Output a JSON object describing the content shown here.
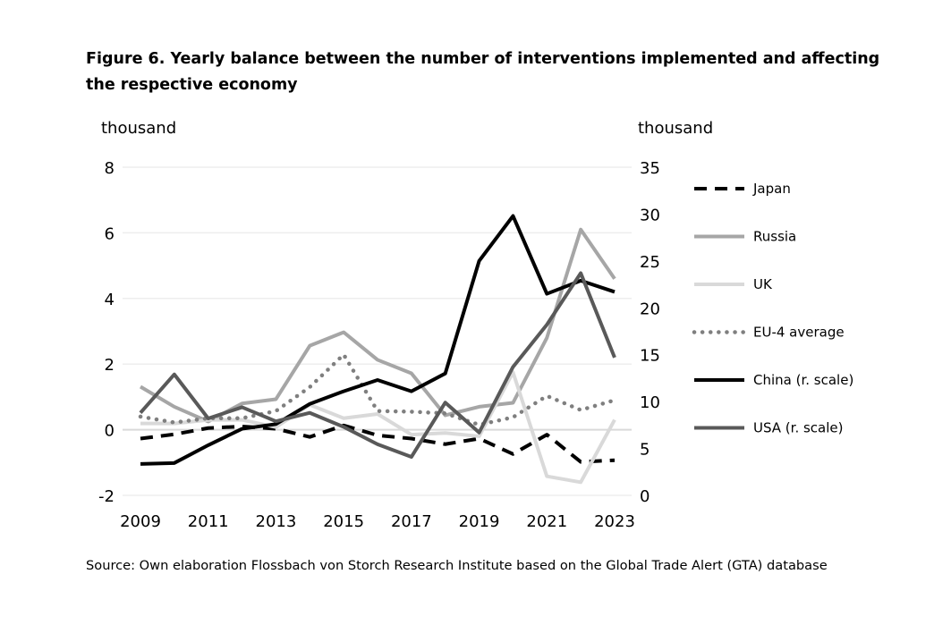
{
  "chart_data": {
    "type": "line",
    "title": "Figure 6. Yearly balance between the number of interventions implemented and affecting the respective economy",
    "source": "Source: Own elaboration Flossbach von Storch Research Institute based on the Global Trade Alert (GTA) database",
    "ylabel_left": "thousand",
    "ylabel_right": "thousand",
    "ylim_left": [
      -2,
      8
    ],
    "ylim_right": [
      0,
      35
    ],
    "yticks_left": [
      "8",
      "6",
      "4",
      "2",
      "0",
      "-2"
    ],
    "yticks_right": [
      "35",
      "30",
      "25",
      "20",
      "15",
      "10",
      "5",
      "0"
    ],
    "x": [
      2009,
      2010,
      2011,
      2012,
      2013,
      2014,
      2015,
      2016,
      2017,
      2018,
      2019,
      2020,
      2021,
      2022,
      2023
    ],
    "xticks": [
      "2009",
      "2011",
      "2013",
      "2015",
      "2017",
      "2019",
      "2021",
      "2023"
    ],
    "grid": true,
    "legend_position": "right",
    "series": [
      {
        "name": "Japan",
        "axis": "left",
        "color": "#000000",
        "style": "dashed",
        "values": [
          -0.27,
          -0.14,
          0.05,
          0.1,
          0.03,
          -0.22,
          0.13,
          -0.17,
          -0.27,
          -0.44,
          -0.27,
          -0.74,
          -0.15,
          -0.98,
          -0.93
        ]
      },
      {
        "name": "Russia",
        "axis": "left",
        "color": "#a6a6a6",
        "style": "solid",
        "values": [
          1.31,
          0.7,
          0.25,
          0.8,
          0.93,
          2.56,
          2.97,
          2.13,
          1.72,
          0.44,
          0.7,
          0.82,
          2.8,
          6.1,
          4.6
        ]
      },
      {
        "name": "UK",
        "axis": "left",
        "color": "#d9d9d9",
        "style": "solid",
        "values": [
          0.19,
          0.19,
          0.3,
          0.3,
          0.08,
          0.76,
          0.35,
          0.48,
          -0.15,
          -0.1,
          -0.2,
          1.75,
          -1.42,
          -1.6,
          0.3
        ]
      },
      {
        "name": "EU-4 average",
        "axis": "left",
        "color": "#7f7f7f",
        "style": "dotted",
        "values": [
          0.4,
          0.22,
          0.35,
          0.35,
          0.57,
          1.3,
          2.29,
          0.57,
          0.55,
          0.5,
          0.15,
          0.38,
          1.03,
          0.6,
          0.9
        ]
      },
      {
        "name": "China (r. scale)",
        "axis": "right",
        "color": "#000000",
        "style": "solid",
        "values": [
          3.35,
          3.45,
          5.35,
          7.1,
          7.6,
          9.75,
          11.1,
          12.3,
          11.1,
          13.0,
          25.0,
          29.8,
          21.5,
          22.9,
          21.7
        ]
      },
      {
        "name": "USA (r. scale)",
        "axis": "right",
        "color": "#595959",
        "style": "solid",
        "values": [
          8.8,
          12.9,
          8.2,
          9.4,
          7.9,
          8.8,
          7.3,
          5.45,
          4.1,
          9.9,
          6.7,
          13.7,
          18.2,
          23.7,
          14.7
        ]
      }
    ]
  }
}
